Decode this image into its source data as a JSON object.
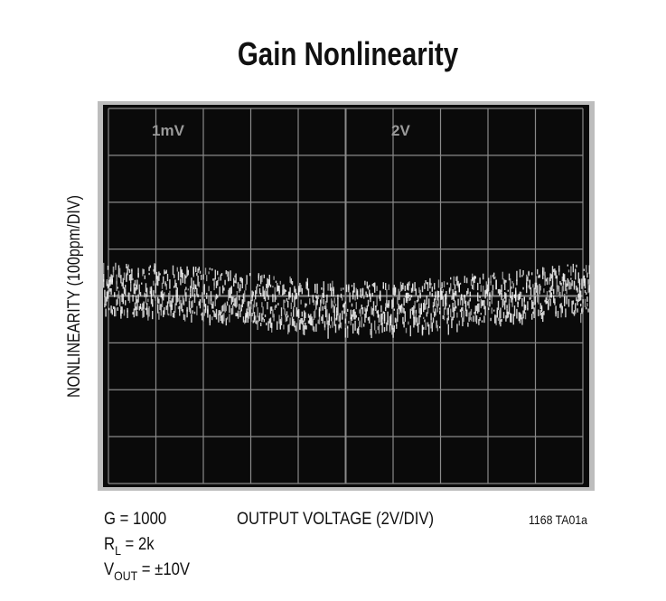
{
  "figure": {
    "title": "Gain Nonlinearity",
    "y_axis_label": "NONLINEARITY (100ppm/DIV)",
    "x_axis_label": "OUTPUT VOLTAGE (2V/DIV)",
    "screen_labels": [
      "1mV",
      "2V"
    ],
    "conditions": [
      [
        "G = 1000"
      ],
      [
        "R",
        "L",
        " = 2k"
      ],
      [
        "V",
        "OUT",
        " = ±10V"
      ]
    ],
    "figure_id": "1168 TA01a"
  }
}
